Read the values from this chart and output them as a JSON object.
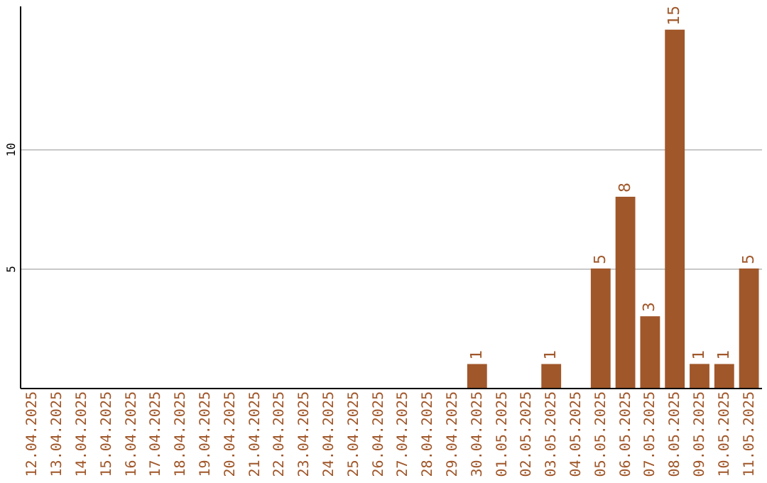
{
  "chart_data": {
    "type": "bar",
    "categories": [
      "12.04.2025",
      "13.04.2025",
      "14.04.2025",
      "15.04.2025",
      "16.04.2025",
      "17.04.2025",
      "18.04.2025",
      "19.04.2025",
      "20.04.2025",
      "21.04.2025",
      "22.04.2025",
      "23.04.2025",
      "24.04.2025",
      "25.04.2025",
      "26.04.2025",
      "27.04.2025",
      "28.04.2025",
      "29.04.2025",
      "30.04.2025",
      "01.05.2025",
      "02.05.2025",
      "03.05.2025",
      "04.05.2025",
      "05.05.2025",
      "06.05.2025",
      "07.05.2025",
      "08.05.2025",
      "09.05.2025",
      "10.05.2025",
      "11.05.2025"
    ],
    "values": [
      0,
      0,
      0,
      0,
      0,
      0,
      0,
      0,
      0,
      0,
      0,
      0,
      0,
      0,
      0,
      0,
      0,
      0,
      1,
      0,
      0,
      1,
      0,
      5,
      8,
      3,
      15,
      1,
      1,
      5
    ],
    "value_labels": [
      null,
      null,
      null,
      null,
      null,
      null,
      null,
      null,
      null,
      null,
      null,
      null,
      null,
      null,
      null,
      null,
      null,
      null,
      "1",
      null,
      null,
      "1",
      null,
      "5",
      "8",
      "3",
      "15",
      "1",
      "1",
      "5"
    ],
    "color": "#a0572a",
    "ylim": [
      0,
      16
    ],
    "yticks": [
      5,
      10
    ],
    "grid": "y"
  }
}
